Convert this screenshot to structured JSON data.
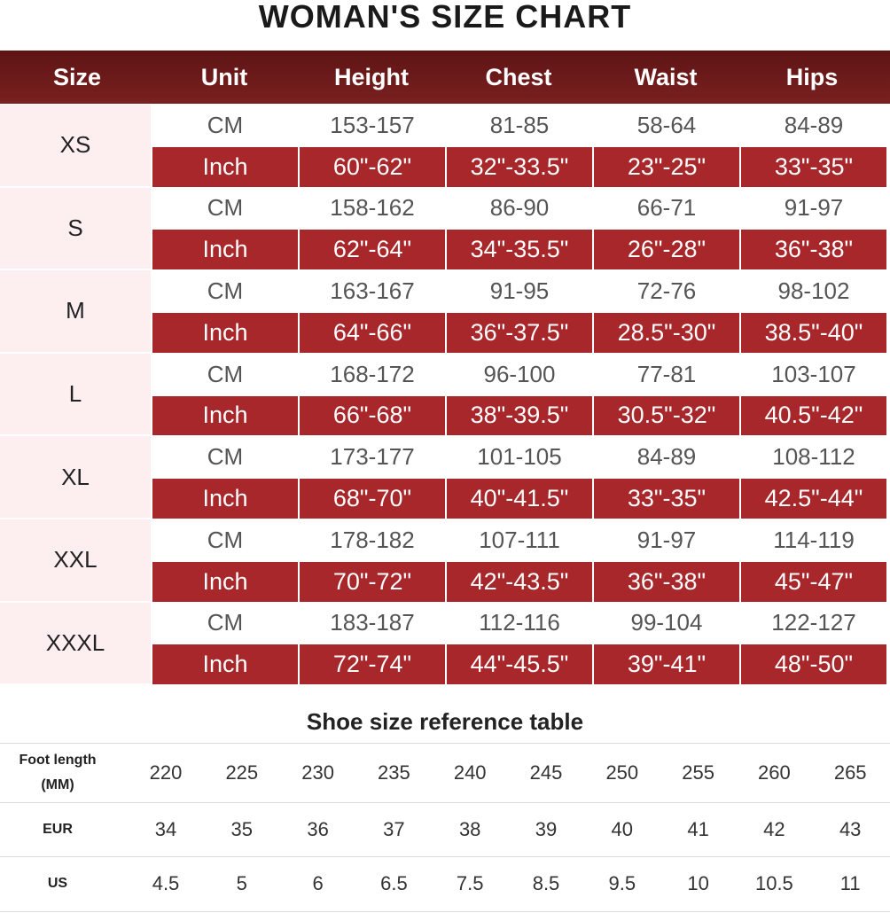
{
  "title": "WOMAN'S SIZE CHART",
  "size_table": {
    "header": [
      "Size",
      "Unit",
      "Height",
      "Chest",
      "Waist",
      "Hips"
    ],
    "groups": [
      {
        "size": "XS",
        "rows": [
          [
            "CM",
            "153-157",
            "81-85",
            "58-64",
            "84-89"
          ],
          [
            "Inch",
            "60\"-62\"",
            "32\"-33.5\"",
            "23\"-25\"",
            "33\"-35\""
          ]
        ]
      },
      {
        "size": "S",
        "rows": [
          [
            "CM",
            "158-162",
            "86-90",
            "66-71",
            "91-97"
          ],
          [
            "Inch",
            "62\"-64\"",
            "34\"-35.5\"",
            "26\"-28\"",
            "36\"-38\""
          ]
        ]
      },
      {
        "size": "M",
        "rows": [
          [
            "CM",
            "163-167",
            "91-95",
            "72-76",
            "98-102"
          ],
          [
            "Inch",
            "64\"-66\"",
            "36\"-37.5\"",
            "28.5\"-30\"",
            "38.5\"-40\""
          ]
        ]
      },
      {
        "size": "L",
        "rows": [
          [
            "CM",
            "168-172",
            "96-100",
            "77-81",
            "103-107"
          ],
          [
            "Inch",
            "66\"-68\"",
            "38\"-39.5\"",
            "30.5\"-32\"",
            "40.5\"-42\""
          ]
        ]
      },
      {
        "size": "XL",
        "rows": [
          [
            "CM",
            "173-177",
            "101-105",
            "84-89",
            "108-112"
          ],
          [
            "Inch",
            "68\"-70\"",
            "40\"-41.5\"",
            "33\"-35\"",
            "42.5\"-44\""
          ]
        ]
      },
      {
        "size": "XXL",
        "rows": [
          [
            "CM",
            "178-182",
            "107-111",
            "91-97",
            "114-119"
          ],
          [
            "Inch",
            "70\"-72\"",
            "42\"-43.5\"",
            "36\"-38\"",
            "45\"-47\""
          ]
        ]
      },
      {
        "size": "XXXL",
        "rows": [
          [
            "CM",
            "183-187",
            "112-116",
            "99-104",
            "122-127"
          ],
          [
            "Inch",
            "72\"-74\"",
            "44\"-45.5\"",
            "39\"-41\"",
            "48\"-50\""
          ]
        ]
      }
    ]
  },
  "shoe_table": {
    "title": "Shoe size reference table",
    "rows": [
      {
        "label": "Foot length (MM)",
        "values": [
          "220",
          "225",
          "230",
          "235",
          "240",
          "245",
          "250",
          "255",
          "260",
          "265"
        ]
      },
      {
        "label": "EUR",
        "values": [
          "34",
          "35",
          "36",
          "37",
          "38",
          "39",
          "40",
          "41",
          "42",
          "43"
        ]
      },
      {
        "label": "US",
        "values": [
          "4.5",
          "5",
          "6",
          "6.5",
          "7.5",
          "8.5",
          "9.5",
          "10",
          "10.5",
          "11"
        ]
      }
    ]
  }
}
